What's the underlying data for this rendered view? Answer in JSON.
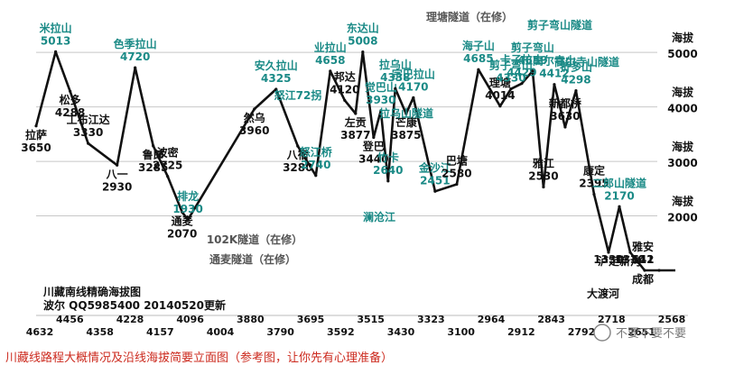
{
  "chart_data": {
    "type": "line",
    "title": "川藏南线精确海拔图",
    "info_lines": [
      "波尔 QQ5985400 20140520更新"
    ],
    "footer": "川藏线路程大概情况及沿线海拔简要立面图（参考图，让你先有心理准备）",
    "watermark": "不要不要不要",
    "y_axis": {
      "label": "海拔",
      "ticks": [
        {
          "value": 5000,
          "label": "5000"
        },
        {
          "value": 4000,
          "label": "4000"
        },
        {
          "value": 3000,
          "label": "3000"
        },
        {
          "value": 2000,
          "label": "2000"
        }
      ],
      "ylim": [
        1000,
        5300
      ]
    },
    "km_labels": [
      "4632",
      "4456",
      "4358",
      "4228",
      "4157",
      "4096",
      "4004",
      "3880",
      "3790",
      "3695",
      "3592",
      "3515",
      "3430",
      "3323",
      "3100",
      "2964",
      "2912",
      "2843",
      "2792",
      "2718",
      "2651",
      "2568"
    ],
    "colors": {
      "line": "#111111",
      "place": "#111111",
      "pass": "#1a8a86",
      "tunnel": "#555555",
      "footer": "#cc2a1e",
      "grid": "#c8c8c8"
    },
    "points": [
      {
        "x": 4632,
        "y": 3650,
        "name": "拉萨",
        "value": "3650",
        "kind": "place"
      },
      {
        "x": 4605,
        "y": 5013,
        "name": "米拉山",
        "value": "5013",
        "kind": "pass"
      },
      {
        "x": 4585,
        "y": 4288,
        "name": "松多",
        "value": "4288",
        "kind": "place"
      },
      {
        "x": 4560,
        "y": 3330,
        "name": "工布江达",
        "value": "3330",
        "kind": "place"
      },
      {
        "x": 4520,
        "y": 2930,
        "name": "八一",
        "value": "2930",
        "kind": "place"
      },
      {
        "x": 4495,
        "y": 4720,
        "name": "色季拉山",
        "value": "4720",
        "kind": "pass"
      },
      {
        "x": 4470,
        "y": 3285,
        "name": "鲁郎",
        "value": "3285",
        "kind": "place"
      },
      {
        "x": 4450,
        "y": 2725,
        "name": "波密",
        "value": "2725",
        "kind": "place"
      },
      {
        "x": 4430,
        "y": 2070,
        "name": "通麦",
        "value": "2070",
        "kind": "place"
      },
      {
        "x": 4422,
        "y": 1930,
        "name": "排龙",
        "value": "1930",
        "kind": "pass"
      },
      {
        "x": 4330,
        "y": 3960,
        "name": "然乌",
        "value": "3960",
        "kind": "place"
      },
      {
        "x": 4300,
        "y": 4325,
        "name": "安久拉山",
        "value": "4325",
        "kind": "pass"
      },
      {
        "x": 4270,
        "y": 3280,
        "name": "八宿",
        "value": "3280",
        "kind": "place"
      },
      {
        "x": 4245,
        "y": 2740,
        "name": "怒江桥",
        "value": "2740",
        "kind": "pass"
      },
      {
        "x": 4225,
        "y": 4658,
        "name": "业拉山",
        "value": "4658",
        "kind": "pass"
      },
      {
        "x": 4205,
        "y": 4120,
        "name": "邦达",
        "value": "4120",
        "kind": "place"
      },
      {
        "x": 4190,
        "y": 3877,
        "name": "左贡",
        "value": "3877",
        "kind": "place"
      },
      {
        "x": 4180,
        "y": 5008,
        "name": "东达山",
        "value": "5008",
        "kind": "pass"
      },
      {
        "x": 4165,
        "y": 3440,
        "name": "登巴",
        "value": "3440",
        "kind": "place"
      },
      {
        "x": 4155,
        "y": 3930,
        "name": "觉巴山",
        "value": "3930",
        "kind": "pass"
      },
      {
        "x": 4145,
        "y": 2640,
        "name": "竹卡",
        "value": "2640",
        "kind": "pass"
      },
      {
        "x": 4135,
        "y": 4338,
        "name": "拉乌山",
        "value": "4338",
        "kind": "pass"
      },
      {
        "x": 4120,
        "y": 3875,
        "name": "芒康",
        "value": "3875",
        "kind": "place"
      },
      {
        "x": 4110,
        "y": 4170,
        "name": "宗巴拉山",
        "value": "4170",
        "kind": "pass"
      },
      {
        "x": 4080,
        "y": 2451,
        "name": "金沙江",
        "value": "2451",
        "kind": "pass"
      },
      {
        "x": 4050,
        "y": 2580,
        "name": "巴塘",
        "value": "2580",
        "kind": "place"
      },
      {
        "x": 4020,
        "y": 4685,
        "name": "海子山",
        "value": "4685",
        "kind": "pass"
      },
      {
        "x": 3990,
        "y": 4014,
        "name": "理塘",
        "value": "4014",
        "kind": "place"
      },
      {
        "x": 3975,
        "y": 4330,
        "name": "剪子弯山",
        "value": "4330",
        "kind": "pass"
      },
      {
        "x": 3960,
        "y": 4429,
        "name": "卡子拉山",
        "value": "4429",
        "kind": "pass"
      },
      {
        "x": 3945,
        "y": 4659,
        "name": "剪子弯山",
        "value": "4659",
        "kind": "pass"
      },
      {
        "x": 3930,
        "y": 2530,
        "name": "雅江",
        "value": "2530",
        "kind": "place"
      },
      {
        "x": 3915,
        "y": 4412,
        "name": "高尔寺山",
        "value": "4412",
        "kind": "pass"
      },
      {
        "x": 3900,
        "y": 3630,
        "name": "新都桥",
        "value": "3630",
        "kind": "place"
      },
      {
        "x": 3885,
        "y": 4298,
        "name": "折多山",
        "value": "4298",
        "kind": "pass"
      },
      {
        "x": 3860,
        "y": 2395,
        "name": "康定",
        "value": "2395",
        "kind": "place"
      },
      {
        "x": 3840,
        "y": 1330,
        "name": "泸定",
        "value": "1330",
        "kind": "place"
      },
      {
        "x": 3825,
        "y": 2170,
        "name": "二郎山隧道",
        "value": "2170",
        "kind": "pass"
      },
      {
        "x": 3810,
        "y": 1330,
        "name": "新沟",
        "value": "1330",
        "kind": "place"
      },
      {
        "x": 3790,
        "y": 641,
        "name": "雅安",
        "value": "641",
        "kind": "place"
      },
      {
        "x": 3770,
        "y": 512,
        "name": "成都",
        "value": "512",
        "kind": "place"
      }
    ],
    "annotations": [
      {
        "text": "102K隧道（在修）",
        "kind": "tunnel"
      },
      {
        "text": "通麦隧道（在修）",
        "kind": "tunnel"
      },
      {
        "text": "理塘隧道（在修）",
        "kind": "tunnel"
      },
      {
        "text": "剪子弯山隧道",
        "kind": "pass"
      },
      {
        "text": "高尔寺山隧道",
        "kind": "pass"
      },
      {
        "text": "怒江72拐",
        "kind": "pass"
      },
      {
        "text": "拉乌山隧道",
        "kind": "pass"
      },
      {
        "text": "澜沧江",
        "kind": "pass"
      },
      {
        "text": "大渡河",
        "kind": "place"
      }
    ]
  }
}
